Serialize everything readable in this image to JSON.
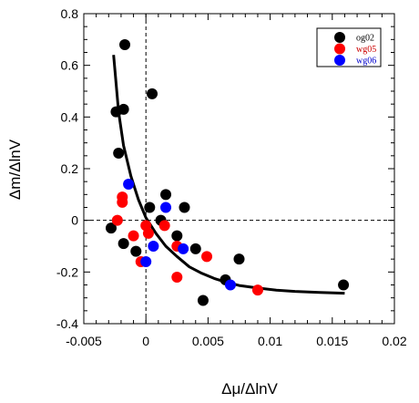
{
  "chart_data": {
    "type": "scatter",
    "title": "",
    "xlabel": "Δμ/ΔlnV",
    "ylabel": "Δm/ΔlnV",
    "xlim": [
      -0.005,
      0.02
    ],
    "ylim": [
      -0.4,
      0.8
    ],
    "xticks": [
      -0.005,
      0,
      0.005,
      0.01,
      0.015,
      0.02
    ],
    "yticks": [
      -0.4,
      -0.2,
      0,
      0.2,
      0.4,
      0.6,
      0.8
    ],
    "xtick_labels": [
      "-0.005",
      "0",
      "0.005",
      "0.01",
      "0.015",
      "0.02"
    ],
    "ytick_labels": [
      "-0.4",
      "-0.2",
      "0",
      "0.2",
      "0.4",
      "0.6",
      "0.8"
    ],
    "reference_lines": {
      "x": 0,
      "y": 0,
      "style": "dashed"
    },
    "legend_position": "top-right",
    "series": [
      {
        "name": "og02",
        "color": "#000000",
        "points": [
          [
            -0.0017,
            0.68
          ],
          [
            0.0005,
            0.49
          ],
          [
            -0.0024,
            0.42
          ],
          [
            -0.0018,
            0.43
          ],
          [
            -0.0022,
            0.26
          ],
          [
            0.0016,
            0.1
          ],
          [
            0.0031,
            0.05
          ],
          [
            0.0003,
            0.05
          ],
          [
            0.0012,
            0.0
          ],
          [
            -0.0028,
            -0.03
          ],
          [
            -0.0018,
            -0.09
          ],
          [
            -0.0008,
            -0.12
          ],
          [
            0.0025,
            -0.06
          ],
          [
            0.004,
            -0.11
          ],
          [
            0.0075,
            -0.15
          ],
          [
            0.0064,
            -0.23
          ],
          [
            0.0046,
            -0.31
          ],
          [
            0.0159,
            -0.25
          ]
        ]
      },
      {
        "name": "wg05",
        "color": "#ff0000",
        "points": [
          [
            -0.0019,
            0.09
          ],
          [
            -0.0019,
            0.07
          ],
          [
            -0.0023,
            0.0
          ],
          [
            -0.001,
            -0.06
          ],
          [
            -0.0004,
            -0.16
          ],
          [
            0.0,
            -0.02
          ],
          [
            0.0002,
            -0.05
          ],
          [
            0.0015,
            -0.02
          ],
          [
            0.0025,
            -0.1
          ],
          [
            0.0049,
            -0.14
          ],
          [
            0.0025,
            -0.22
          ],
          [
            0.009,
            -0.27
          ]
        ]
      },
      {
        "name": "wg06",
        "color": "#0000ff",
        "points": [
          [
            -0.0014,
            0.14
          ],
          [
            0.0016,
            0.05
          ],
          [
            0.0006,
            -0.1
          ],
          [
            0.003,
            -0.11
          ],
          [
            0.0,
            -0.16
          ],
          [
            0.0068,
            -0.25
          ]
        ]
      }
    ],
    "fit_curve": {
      "color": "#000000",
      "points": [
        [
          -0.0026,
          0.64
        ],
        [
          -0.0022,
          0.42
        ],
        [
          -0.0018,
          0.29
        ],
        [
          -0.0012,
          0.17
        ],
        [
          -0.0006,
          0.08
        ],
        [
          0.0,
          0.01
        ],
        [
          0.0008,
          -0.05
        ],
        [
          0.0016,
          -0.1
        ],
        [
          0.0025,
          -0.14
        ],
        [
          0.0035,
          -0.18
        ],
        [
          0.0045,
          -0.205
        ],
        [
          0.0055,
          -0.225
        ],
        [
          0.0065,
          -0.24
        ],
        [
          0.0075,
          -0.252
        ],
        [
          0.009,
          -0.262
        ],
        [
          0.0105,
          -0.27
        ],
        [
          0.012,
          -0.275
        ],
        [
          0.014,
          -0.279
        ],
        [
          0.016,
          -0.282
        ]
      ]
    }
  }
}
